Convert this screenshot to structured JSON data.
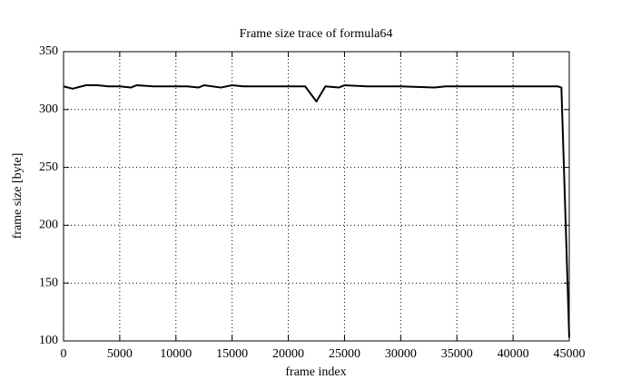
{
  "chart_data": {
    "type": "line",
    "title": "Frame size trace of formula64",
    "xlabel": "frame index",
    "ylabel": "frame size [byte]",
    "x": [
      0,
      800,
      2000,
      3000,
      4000,
      5000,
      6000,
      6500,
      8000,
      10000,
      11000,
      12000,
      12500,
      14000,
      15000,
      16000,
      18000,
      20000,
      21500,
      22500,
      23300,
      24500,
      25000,
      27000,
      29000,
      30000,
      33000,
      34000,
      40000,
      44000,
      44300,
      45000
    ],
    "values": [
      320,
      318,
      321,
      321,
      320,
      320,
      319,
      321,
      320,
      320,
      320,
      319,
      321,
      319,
      321,
      320,
      320,
      320,
      320,
      307,
      320,
      319,
      321,
      320,
      320,
      320,
      319,
      320,
      320,
      320,
      319,
      103
    ],
    "color": "#000000",
    "xlim": [
      0,
      45000
    ],
    "xticks": [
      0,
      5000,
      10000,
      15000,
      20000,
      25000,
      30000,
      35000,
      40000,
      45000
    ],
    "ylim": [
      100,
      350
    ],
    "yticks": [
      100,
      150,
      200,
      250,
      300,
      350
    ],
    "grid": true
  }
}
